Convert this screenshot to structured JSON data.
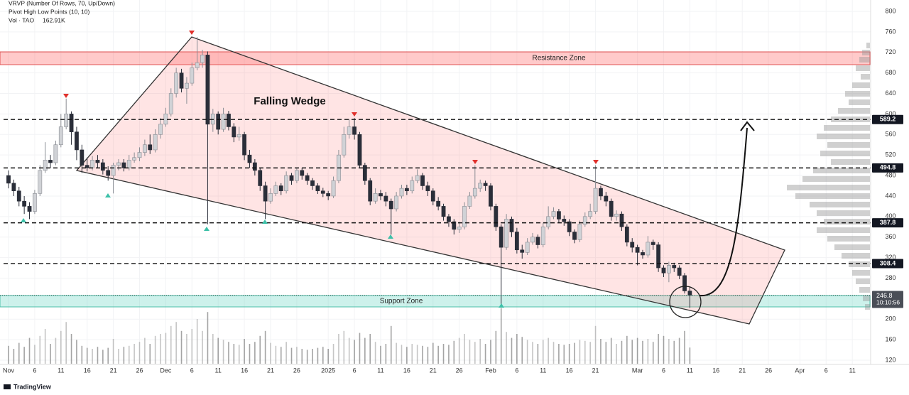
{
  "chart_data": {
    "type": "candlestick",
    "indicators": [
      "VRVP (Number Of Rows, 70, Up/Down)",
      "Pivot High Low Points (10, 10)"
    ],
    "volume_label": "Vol · TAO",
    "volume_readout": "162.91K",
    "annotations": {
      "wedge": "Falling Wedge",
      "resistance": "Resistance Zone",
      "support": "Support Zone"
    },
    "brand": "TradingView",
    "up_color": "#d0d2d6",
    "down_color": "#2a2e39",
    "grid": true,
    "ylim": [
      120,
      800
    ],
    "yticks": [
      800,
      760,
      720,
      680,
      640,
      600,
      560,
      520,
      480,
      440,
      400,
      360,
      320,
      280,
      200,
      160,
      120
    ],
    "price_lines": [
      589.2,
      494.8,
      387.8,
      308.4
    ],
    "last_price": 246.8,
    "countdown": "10:10:56",
    "categories": [
      "Nov",
      null,
      null,
      null,
      null,
      "6",
      null,
      null,
      null,
      null,
      "11",
      null,
      null,
      null,
      null,
      "16",
      null,
      null,
      null,
      null,
      "21",
      null,
      null,
      null,
      null,
      "26",
      null,
      null,
      null,
      null,
      "Dec",
      null,
      null,
      null,
      null,
      "6",
      null,
      null,
      null,
      null,
      "11",
      null,
      null,
      null,
      null,
      "16",
      null,
      null,
      null,
      null,
      "21",
      null,
      null,
      null,
      null,
      "26",
      null,
      null,
      null,
      null,
      null,
      "2025",
      null,
      null,
      null,
      null,
      "6",
      null,
      null,
      null,
      null,
      "11",
      null,
      null,
      null,
      null,
      "16",
      null,
      null,
      null,
      null,
      "21",
      null,
      null,
      null,
      null,
      "26",
      null,
      null,
      null,
      null,
      null,
      "Feb",
      null,
      null,
      null,
      null,
      "6",
      null,
      null,
      null,
      null,
      "11",
      null,
      null,
      null,
      null,
      "16",
      null,
      null,
      null,
      null,
      "21",
      null,
      null,
      null,
      null,
      null,
      null,
      null,
      "Mar",
      null,
      null,
      null,
      null,
      "6",
      null,
      null,
      null,
      null,
      "11",
      null,
      null,
      null,
      null,
      "16",
      null,
      null,
      null,
      null,
      "21",
      null,
      null,
      null,
      null,
      "26",
      null,
      null,
      null,
      null,
      null,
      "Apr",
      null,
      null,
      null,
      null,
      "6",
      null,
      null,
      null,
      null,
      "11"
    ],
    "open": [
      480,
      465,
      450,
      430,
      420,
      410,
      445,
      490,
      510,
      505,
      540,
      575,
      600,
      565,
      530,
      500,
      495,
      510,
      505,
      490,
      480,
      500,
      505,
      495,
      510,
      515,
      525,
      540,
      530,
      560,
      580,
      600,
      640,
      680,
      650,
      660,
      690,
      700,
      715,
      580,
      600,
      570,
      600,
      575,
      555,
      560,
      520,
      505,
      490,
      460,
      430,
      445,
      460,
      450,
      480,
      470,
      490,
      480,
      470,
      460,
      450,
      445,
      440,
      470,
      520,
      560,
      575,
      560,
      500,
      470,
      430,
      445,
      440,
      430,
      415,
      440,
      455,
      450,
      470,
      480,
      460,
      450,
      430,
      420,
      400,
      390,
      375,
      380,
      420,
      440,
      455,
      465,
      460,
      420,
      380,
      340,
      395,
      370,
      335,
      330,
      350,
      360,
      345,
      380,
      400,
      410,
      395,
      390,
      370,
      355,
      385,
      400,
      410,
      455,
      440,
      430,
      400,
      405,
      380,
      350,
      340,
      330,
      325,
      350,
      345,
      300,
      290,
      305,
      300,
      285,
      255,
      null,
      null,
      null,
      null,
      null,
      null,
      null,
      null,
      null,
      null,
      null,
      null,
      null,
      null,
      null,
      null,
      null,
      null,
      null,
      null,
      null,
      null,
      null,
      null,
      null,
      null,
      null,
      null,
      null,
      null,
      null
    ],
    "high": [
      490,
      472,
      458,
      440,
      428,
      452,
      500,
      545,
      520,
      548,
      600,
      630,
      605,
      575,
      540,
      515,
      518,
      520,
      512,
      498,
      505,
      512,
      512,
      520,
      525,
      535,
      550,
      560,
      570,
      592,
      612,
      650,
      690,
      688,
      672,
      700,
      750,
      725,
      722,
      610,
      605,
      612,
      606,
      582,
      575,
      565,
      530,
      512,
      495,
      468,
      455,
      468,
      465,
      488,
      485,
      495,
      495,
      485,
      475,
      465,
      456,
      450,
      478,
      530,
      575,
      590,
      592,
      565,
      505,
      475,
      455,
      452,
      448,
      435,
      448,
      462,
      462,
      478,
      492,
      485,
      468,
      455,
      438,
      425,
      405,
      395,
      390,
      428,
      448,
      500,
      472,
      470,
      465,
      425,
      385,
      405,
      400,
      378,
      345,
      358,
      368,
      365,
      388,
      420,
      418,
      415,
      402,
      395,
      375,
      392,
      408,
      425,
      500,
      460,
      448,
      435,
      412,
      410,
      385,
      358,
      345,
      335,
      362,
      355,
      350,
      305,
      312,
      310,
      305,
      290,
      262,
      null,
      null,
      null,
      null,
      null,
      null,
      null,
      null,
      null,
      null,
      null,
      null,
      null,
      null,
      null,
      null,
      null,
      null,
      null,
      null,
      null,
      null,
      null,
      null,
      null,
      null,
      null,
      null,
      null,
      null,
      null
    ],
    "low": [
      455,
      440,
      420,
      405,
      395,
      405,
      440,
      485,
      495,
      500,
      535,
      570,
      540,
      510,
      485,
      488,
      490,
      495,
      482,
      470,
      445,
      490,
      488,
      490,
      505,
      508,
      518,
      522,
      525,
      552,
      575,
      595,
      632,
      642,
      620,
      655,
      685,
      690,
      385,
      565,
      560,
      565,
      568,
      545,
      548,
      510,
      495,
      480,
      450,
      395,
      425,
      440,
      442,
      445,
      462,
      465,
      472,
      462,
      452,
      444,
      438,
      432,
      436,
      465,
      515,
      552,
      550,
      495,
      462,
      422,
      425,
      432,
      420,
      365,
      410,
      435,
      442,
      445,
      465,
      452,
      440,
      422,
      412,
      392,
      380,
      365,
      368,
      375,
      415,
      435,
      448,
      450,
      412,
      372,
      225,
      335,
      360,
      328,
      318,
      325,
      345,
      338,
      340,
      375,
      395,
      388,
      382,
      362,
      348,
      350,
      380,
      395,
      405,
      432,
      420,
      392,
      392,
      372,
      342,
      330,
      305,
      318,
      320,
      335,
      292,
      282,
      272,
      292,
      278,
      250,
      222,
      null,
      null,
      null,
      null,
      null,
      null,
      null,
      null,
      null,
      null,
      null,
      null,
      null,
      null,
      null,
      null,
      null,
      null,
      null,
      null,
      null,
      null,
      null,
      null,
      null,
      null,
      null,
      null,
      null,
      null,
      null
    ],
    "close": [
      465,
      450,
      430,
      420,
      410,
      445,
      490,
      510,
      505,
      540,
      575,
      600,
      565,
      530,
      500,
      495,
      510,
      505,
      490,
      480,
      500,
      505,
      495,
      510,
      515,
      525,
      540,
      530,
      560,
      580,
      600,
      640,
      680,
      650,
      660,
      690,
      700,
      715,
      580,
      600,
      570,
      600,
      575,
      555,
      560,
      520,
      505,
      490,
      460,
      430,
      445,
      460,
      450,
      480,
      470,
      490,
      480,
      470,
      460,
      450,
      445,
      440,
      470,
      520,
      560,
      575,
      560,
      500,
      470,
      430,
      445,
      440,
      430,
      415,
      440,
      455,
      450,
      470,
      480,
      460,
      450,
      430,
      420,
      400,
      390,
      375,
      380,
      420,
      440,
      455,
      465,
      460,
      420,
      380,
      340,
      395,
      370,
      335,
      330,
      350,
      360,
      345,
      380,
      400,
      410,
      395,
      390,
      370,
      355,
      385,
      400,
      410,
      455,
      440,
      430,
      400,
      405,
      380,
      350,
      340,
      330,
      325,
      350,
      345,
      300,
      290,
      305,
      300,
      285,
      255,
      246.8,
      null,
      null,
      null,
      null,
      null,
      null,
      null,
      null,
      null,
      null,
      null,
      null,
      null,
      null,
      null,
      null,
      null,
      null,
      null,
      null,
      null,
      null,
      null,
      null,
      null,
      null,
      null,
      null,
      null,
      null,
      null
    ],
    "volume": [
      180,
      150,
      210,
      170,
      260,
      190,
      280,
      350,
      200,
      260,
      330,
      420,
      300,
      240,
      180,
      160,
      150,
      170,
      140,
      160,
      250,
      150,
      170,
      180,
      200,
      220,
      260,
      200,
      280,
      300,
      310,
      380,
      420,
      330,
      300,
      350,
      450,
      330,
      520,
      300,
      260,
      240,
      220,
      200,
      190,
      250,
      200,
      220,
      280,
      330,
      210,
      180,
      170,
      220,
      160,
      170,
      150,
      140,
      150,
      160,
      170,
      150,
      200,
      300,
      330,
      260,
      240,
      310,
      260,
      300,
      220,
      180,
      200,
      380,
      210,
      190,
      170,
      200,
      190,
      180,
      170,
      210,
      180,
      200,
      190,
      230,
      260,
      300,
      240,
      220,
      250,
      200,
      240,
      330,
      560,
      320,
      260,
      300,
      270,
      240,
      220,
      200,
      240,
      260,
      220,
      200,
      190,
      200,
      210,
      240,
      230,
      220,
      380,
      250,
      220,
      260,
      200,
      230,
      280,
      240,
      260,
      230,
      250,
      220,
      300,
      280,
      250,
      230,
      260,
      330,
      162.91,
      null,
      null,
      null,
      null,
      null,
      null,
      null,
      null,
      null,
      null,
      null,
      null,
      null,
      null,
      null,
      null,
      null,
      null,
      null,
      null,
      null,
      null,
      null,
      null,
      null,
      null,
      null,
      null,
      null,
      null,
      null
    ]
  }
}
